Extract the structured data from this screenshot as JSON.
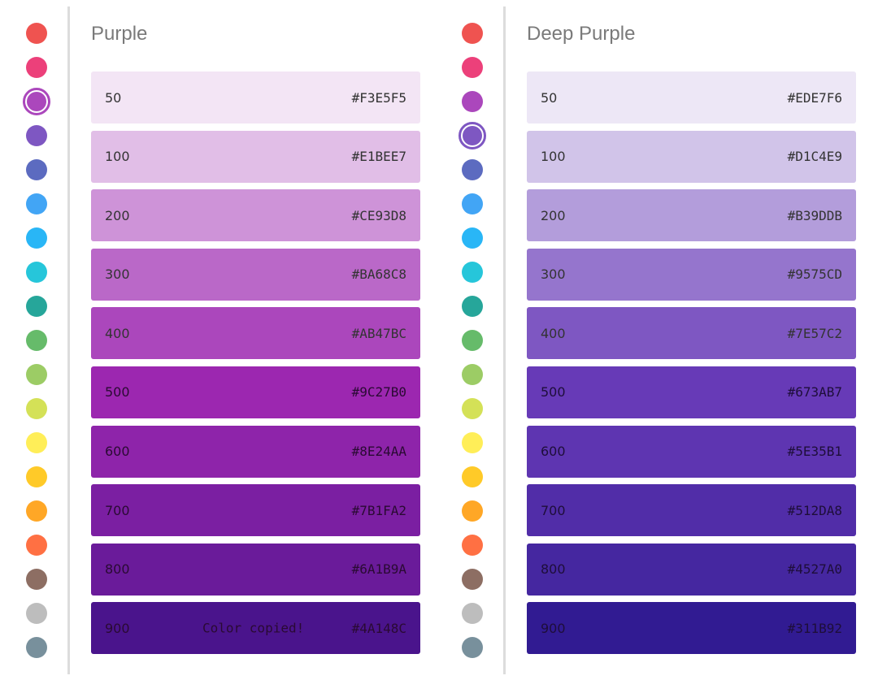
{
  "palette_colors": [
    {
      "name": "red",
      "hex": "#EF5350"
    },
    {
      "name": "pink",
      "hex": "#EC407A"
    },
    {
      "name": "purple",
      "hex": "#AB47BC"
    },
    {
      "name": "deep-purple",
      "hex": "#7E57C2"
    },
    {
      "name": "indigo",
      "hex": "#5C6BC0"
    },
    {
      "name": "blue",
      "hex": "#42A5F5"
    },
    {
      "name": "light-blue",
      "hex": "#29B6F6"
    },
    {
      "name": "cyan",
      "hex": "#26C6DA"
    },
    {
      "name": "teal",
      "hex": "#26A69A"
    },
    {
      "name": "green",
      "hex": "#66BB6A"
    },
    {
      "name": "light-green",
      "hex": "#9CCC65"
    },
    {
      "name": "lime",
      "hex": "#D4E157"
    },
    {
      "name": "yellow",
      "hex": "#FFEE58"
    },
    {
      "name": "amber",
      "hex": "#FFCA28"
    },
    {
      "name": "orange",
      "hex": "#FFA726"
    },
    {
      "name": "deep-orange",
      "hex": "#FF7043"
    },
    {
      "name": "brown",
      "hex": "#8D6E63"
    },
    {
      "name": "grey",
      "hex": "#BDBDBD"
    },
    {
      "name": "blue-grey",
      "hex": "#78909C"
    }
  ],
  "panels": [
    {
      "title": "Purple",
      "selected_index": 2,
      "ring_color": "#AB47BC",
      "swatches": [
        {
          "shade": "50",
          "hex": "#F3E5F5",
          "text_color": "#333333"
        },
        {
          "shade": "100",
          "hex": "#E1BEE7",
          "text_color": "#333333"
        },
        {
          "shade": "200",
          "hex": "#CE93D8",
          "text_color": "#333333"
        },
        {
          "shade": "300",
          "hex": "#BA68C8",
          "text_color": "#333333"
        },
        {
          "shade": "400",
          "hex": "#AB47BC",
          "text_color": "#333333"
        },
        {
          "shade": "500",
          "hex": "#9C27B0",
          "text_color": "#2a0a33"
        },
        {
          "shade": "600",
          "hex": "#8E24AA",
          "text_color": "#2a0a33"
        },
        {
          "shade": "700",
          "hex": "#7B1FA2",
          "text_color": "#2a0a33"
        },
        {
          "shade": "800",
          "hex": "#6A1B9A",
          "text_color": "#2a0a33"
        },
        {
          "shade": "900",
          "hex": "#4A148C",
          "text_color": "#2a0a33",
          "copied": "Color copied!"
        }
      ]
    },
    {
      "title": "Deep Purple",
      "selected_index": 3,
      "ring_color": "#7E57C2",
      "swatches": [
        {
          "shade": "50",
          "hex": "#EDE7F6",
          "text_color": "#333333"
        },
        {
          "shade": "100",
          "hex": "#D1C4E9",
          "text_color": "#333333"
        },
        {
          "shade": "200",
          "hex": "#B39DDB",
          "text_color": "#333333"
        },
        {
          "shade": "300",
          "hex": "#9575CD",
          "text_color": "#333333"
        },
        {
          "shade": "400",
          "hex": "#7E57C2",
          "text_color": "#333333"
        },
        {
          "shade": "500",
          "hex": "#673AB7",
          "text_color": "#1e0e3a"
        },
        {
          "shade": "600",
          "hex": "#5E35B1",
          "text_color": "#1e0e3a"
        },
        {
          "shade": "700",
          "hex": "#512DA8",
          "text_color": "#1e0e3a"
        },
        {
          "shade": "800",
          "hex": "#4527A0",
          "text_color": "#1e0e3a"
        },
        {
          "shade": "900",
          "hex": "#311B92",
          "text_color": "#1e0e3a"
        }
      ]
    }
  ]
}
